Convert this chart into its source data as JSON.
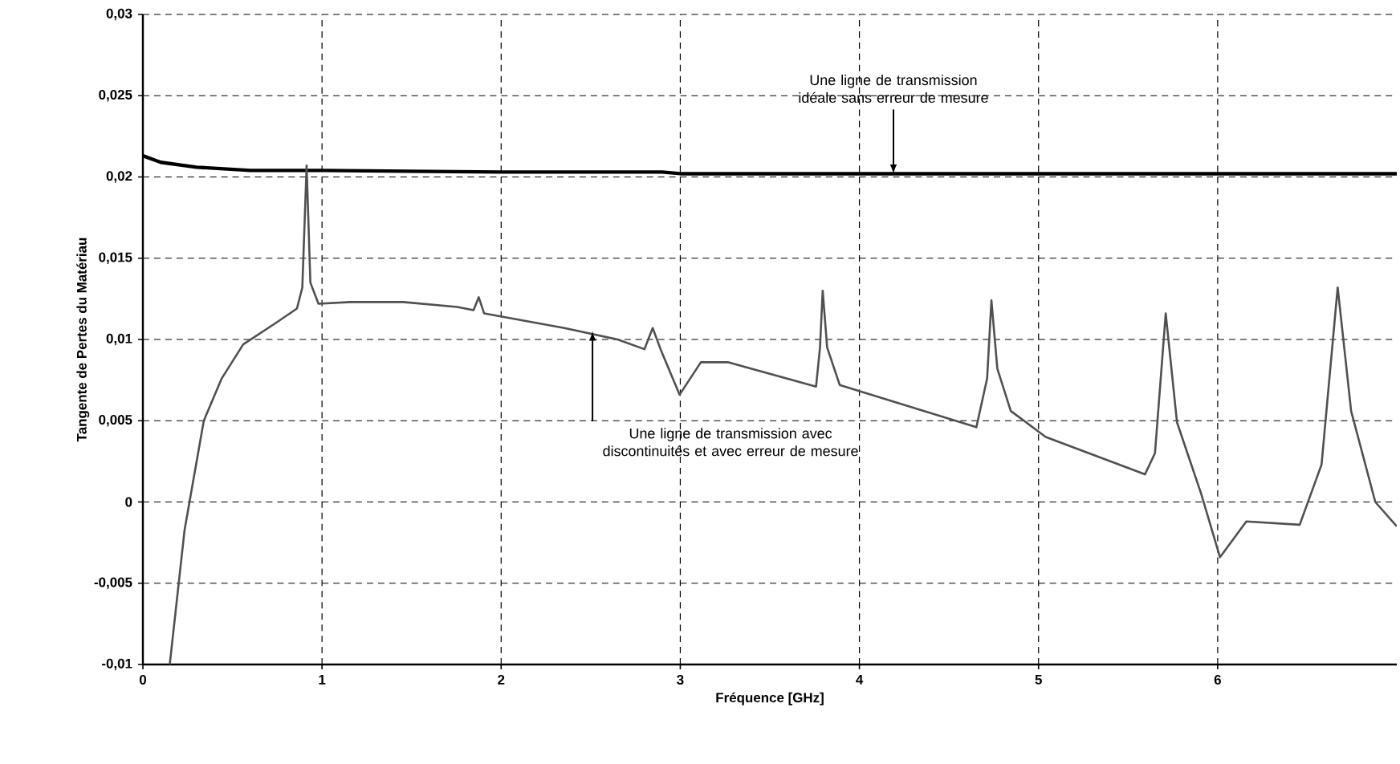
{
  "chart_data": {
    "type": "line",
    "xlabel": "Fréquence [GHz]",
    "ylabel": "Tangente de Pertes du Matériau",
    "xlim": [
      0,
      7
    ],
    "ylim": [
      -0.01,
      0.03
    ],
    "xticks": [
      0,
      1,
      2,
      3,
      4,
      5,
      6
    ],
    "yticks": [
      {
        "value": -0.01,
        "label": "-0,01"
      },
      {
        "value": -0.005,
        "label": "-0,005"
      },
      {
        "value": 0,
        "label": "0"
      },
      {
        "value": 0.005,
        "label": "0,005"
      },
      {
        "value": 0.01,
        "label": "0,01"
      },
      {
        "value": 0.015,
        "label": "0,015"
      },
      {
        "value": 0.02,
        "label": "0,02"
      },
      {
        "value": 0.025,
        "label": "0,025"
      },
      {
        "value": 0.03,
        "label": "0,03"
      }
    ],
    "grid": true,
    "marker": "none",
    "line_style": "solid",
    "series": [
      {
        "color": "#000000",
        "x": [
          0,
          0.1,
          0.3,
          0.6,
          1,
          2,
          2.9,
          3,
          5,
          7
        ],
        "values": [
          0.0213,
          0.0209,
          0.0206,
          0.0204,
          0.0204,
          0.0203,
          0.0203,
          0.0202,
          0.0202,
          0.0202
        ]
      },
      {
        "color": "#505050",
        "x": [
          0.15,
          0.233,
          0.34,
          0.44,
          0.56,
          0.74,
          0.86,
          0.89,
          0.914,
          0.935,
          0.98,
          1.157,
          1.455,
          1.755,
          1.846,
          1.875,
          1.905,
          2.353,
          2.65,
          2.8,
          2.846,
          2.89,
          2.996,
          3.115,
          3.265,
          3.758,
          3.78,
          3.795,
          3.82,
          3.89,
          4.653,
          4.713,
          4.737,
          4.77,
          4.845,
          5.04,
          5.594,
          5.65,
          5.71,
          5.773,
          5.908,
          6.013,
          6.16,
          6.458,
          6.58,
          6.67,
          6.745,
          6.88,
          7.0
        ],
        "values": [
          -0.01,
          -0.0017,
          0.005,
          0.0076,
          0.0097,
          0.011,
          0.0119,
          0.0132,
          0.0207,
          0.0135,
          0.0122,
          0.0123,
          0.0123,
          0.012,
          0.0118,
          0.0126,
          0.0116,
          0.0107,
          0.01,
          0.0094,
          0.0107,
          0.0094,
          0.0066,
          0.0086,
          0.0086,
          0.0071,
          0.0095,
          0.013,
          0.0095,
          0.0072,
          0.0046,
          0.0076,
          0.0124,
          0.0082,
          0.0056,
          0.004,
          0.0017,
          0.003,
          0.0116,
          0.0049,
          0.0005,
          -0.0034,
          -0.0012,
          -0.0014,
          0.0023,
          0.0132,
          0.0056,
          0.0,
          -0.0015
        ]
      }
    ],
    "annotations": [
      {
        "text": "Une ligne de transmission idéale sans erreur de mesure",
        "x": 4.19,
        "y": 0.0202
      },
      {
        "text": "Une ligne de transmission avec discontinuités et avec erreur de mesure",
        "x": 2.51,
        "y": 0.0105
      }
    ]
  }
}
